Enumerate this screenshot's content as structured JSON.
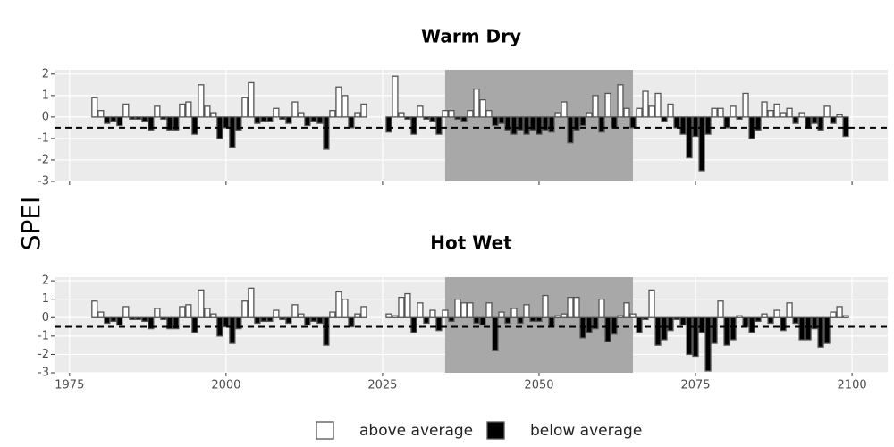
{
  "chart_data": [
    {
      "type": "bar",
      "title": "Warm Dry",
      "x": [
        1979,
        1980,
        1981,
        1982,
        1983,
        1984,
        1985,
        1986,
        1987,
        1988,
        1989,
        1990,
        1991,
        1992,
        1993,
        1994,
        1995,
        1996,
        1997,
        1998,
        1999,
        2000,
        2001,
        2002,
        2003,
        2004,
        2005,
        2006,
        2007,
        2008,
        2009,
        2010,
        2011,
        2012,
        2013,
        2014,
        2015,
        2016,
        2017,
        2018,
        2019,
        2020,
        2021,
        2022,
        2026,
        2027,
        2028,
        2029,
        2030,
        2031,
        2032,
        2033,
        2034,
        2035,
        2036,
        2037,
        2038,
        2039,
        2040,
        2041,
        2042,
        2043,
        2044,
        2045,
        2046,
        2047,
        2048,
        2049,
        2050,
        2051,
        2052,
        2053,
        2054,
        2055,
        2056,
        2057,
        2058,
        2059,
        2060,
        2061,
        2062,
        2063,
        2064,
        2065,
        2066,
        2067,
        2068,
        2069,
        2070,
        2071,
        2072,
        2073,
        2074,
        2075,
        2076,
        2077,
        2078,
        2079,
        2080,
        2081,
        2082,
        2083,
        2084,
        2085,
        2086,
        2087,
        2088,
        2089,
        2090,
        2091,
        2092,
        2093,
        2094,
        2095,
        2096,
        2097,
        2098,
        2099
      ],
      "values": [
        0.9,
        0.3,
        -0.3,
        -0.2,
        -0.4,
        0.6,
        -0.1,
        -0.1,
        -0.2,
        -0.6,
        0.5,
        -0.1,
        -0.6,
        -0.6,
        0.6,
        0.7,
        -0.8,
        1.5,
        0.5,
        0.2,
        -1.0,
        -0.5,
        -1.4,
        -0.6,
        0.9,
        1.6,
        -0.3,
        -0.2,
        -0.2,
        0.4,
        -0.1,
        -0.3,
        0.7,
        0.2,
        -0.4,
        -0.2,
        -0.3,
        -1.5,
        0.3,
        1.4,
        1.0,
        -0.5,
        0.2,
        0.6,
        -0.7,
        1.9,
        0.2,
        -0.1,
        -0.8,
        0.5,
        -0.1,
        -0.2,
        -0.8,
        0.3,
        0.3,
        -0.1,
        -0.2,
        0.3,
        1.3,
        0.8,
        0.3,
        -0.4,
        -0.3,
        -0.6,
        -0.8,
        -0.6,
        -0.8,
        -0.6,
        -0.8,
        -0.6,
        -0.7,
        0.2,
        0.7,
        -1.2,
        -0.6,
        -0.4,
        0.2,
        1.0,
        -0.7,
        1.1,
        -0.5,
        1.5,
        0.4,
        -0.5,
        0.4,
        1.2,
        0.5,
        1.1,
        -0.2,
        0.6,
        -0.5,
        -0.8,
        -1.9,
        -0.9,
        -2.5,
        -0.8,
        0.4,
        0.4,
        -0.5,
        0.5,
        -0.1,
        1.1,
        -1.0,
        -0.6,
        0.7,
        0.3,
        0.6,
        0.2,
        0.4,
        -0.3,
        0.2,
        -0.5,
        -0.3,
        -0.6,
        0.5,
        -0.3,
        0.1,
        -0.9
      ],
      "xlim": [
        1972.6,
        2105.7
      ],
      "ylim": [
        -3,
        2.2
      ],
      "xticks": [
        1975,
        2000,
        2025,
        2050,
        2075,
        2100
      ],
      "yticks": [
        -3,
        -2,
        -1,
        0,
        1,
        2
      ],
      "threshold": -0.5,
      "highlight": [
        2035,
        2065
      ],
      "highlight_color": "#a8a8a8",
      "grid": true
    },
    {
      "type": "bar",
      "title": "Hot Wet",
      "x": [
        1979,
        1980,
        1981,
        1982,
        1983,
        1984,
        1985,
        1986,
        1987,
        1988,
        1989,
        1990,
        1991,
        1992,
        1993,
        1994,
        1995,
        1996,
        1997,
        1998,
        1999,
        2000,
        2001,
        2002,
        2003,
        2004,
        2005,
        2006,
        2007,
        2008,
        2009,
        2010,
        2011,
        2012,
        2013,
        2014,
        2015,
        2016,
        2017,
        2018,
        2019,
        2020,
        2021,
        2022,
        2026,
        2027,
        2028,
        2029,
        2030,
        2031,
        2032,
        2033,
        2034,
        2035,
        2036,
        2037,
        2038,
        2039,
        2040,
        2041,
        2042,
        2043,
        2044,
        2045,
        2046,
        2047,
        2048,
        2049,
        2050,
        2051,
        2052,
        2053,
        2054,
        2055,
        2056,
        2057,
        2058,
        2059,
        2060,
        2061,
        2062,
        2063,
        2064,
        2065,
        2066,
        2067,
        2068,
        2069,
        2070,
        2071,
        2072,
        2073,
        2074,
        2075,
        2076,
        2077,
        2078,
        2079,
        2080,
        2081,
        2082,
        2083,
        2084,
        2085,
        2086,
        2087,
        2088,
        2089,
        2090,
        2091,
        2092,
        2093,
        2094,
        2095,
        2096,
        2097,
        2098,
        2099
      ],
      "values": [
        0.9,
        0.3,
        -0.3,
        -0.2,
        -0.4,
        0.6,
        -0.1,
        -0.1,
        -0.2,
        -0.6,
        0.5,
        -0.1,
        -0.6,
        -0.6,
        0.6,
        0.7,
        -0.8,
        1.5,
        0.5,
        0.2,
        -1.0,
        -0.5,
        -1.4,
        -0.6,
        0.9,
        1.6,
        -0.3,
        -0.2,
        -0.2,
        0.4,
        -0.1,
        -0.3,
        0.7,
        0.2,
        -0.4,
        -0.2,
        -0.3,
        -1.5,
        0.3,
        1.4,
        1.0,
        -0.5,
        0.2,
        0.6,
        0.2,
        0.1,
        1.1,
        1.3,
        -0.8,
        0.8,
        -0.3,
        0.4,
        -0.7,
        0.4,
        -0.2,
        1.0,
        0.8,
        0.8,
        -0.3,
        -0.4,
        0.8,
        -1.8,
        0.3,
        -0.3,
        0.5,
        -0.3,
        0.7,
        -0.2,
        -0.2,
        1.2,
        -0.5,
        0.1,
        0.2,
        1.1,
        1.1,
        -1.1,
        -0.8,
        -0.6,
        1.0,
        -1.3,
        -0.9,
        0.1,
        0.8,
        0.2,
        -0.8,
        -0.1,
        1.5,
        -1.5,
        -1.2,
        -0.7,
        -0.1,
        -0.4,
        -2.0,
        -2.1,
        -0.8,
        -2.9,
        -1.4,
        0.9,
        -1.5,
        -1.2,
        0.1,
        -0.5,
        -0.8,
        -0.2,
        0.2,
        -0.3,
        0.4,
        -0.7,
        0.8,
        -0.3,
        -1.2,
        -1.2,
        -0.6,
        -1.6,
        -1.4,
        0.3,
        0.6,
        0.1
      ],
      "xlim": [
        1972.6,
        2105.7
      ],
      "ylim": [
        -3,
        2.2
      ],
      "xticks": [
        1975,
        2000,
        2025,
        2050,
        2075,
        2100
      ],
      "yticks": [
        -3,
        -2,
        -1,
        0,
        1,
        2
      ],
      "threshold": -0.5,
      "highlight": [
        2035,
        2065
      ],
      "highlight_color": "#a8a8a8",
      "grid": true
    }
  ],
  "ylabel": "SPEI",
  "legend": [
    {
      "label": "above average",
      "color": "#ffffff"
    },
    {
      "label": "below average",
      "color": "#000000"
    }
  ]
}
